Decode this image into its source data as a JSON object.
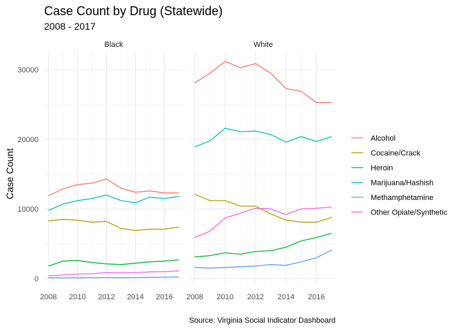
{
  "title": "Case Count by Drug (Statewide)",
  "subtitle": "2008 - 2017",
  "caption": "Source: Virginia Social Indicator Dashboard",
  "chart_data": {
    "type": "line",
    "facets": [
      "Black",
      "White"
    ],
    "x": [
      2008,
      2009,
      2010,
      2011,
      2012,
      2013,
      2014,
      2015,
      2016,
      2017
    ],
    "x_ticks": [
      2008,
      2010,
      2012,
      2014,
      2016
    ],
    "xlim": [
      2007.7,
      2017.3
    ],
    "y_ticks": [
      0,
      10000,
      20000,
      30000
    ],
    "y_tick_labels": [
      "0",
      "10000",
      "20000",
      "30000"
    ],
    "ylim": [
      -800,
      32700
    ],
    "ylabel": "Case Count",
    "xlabel": "",
    "grid": true,
    "legend_position": "right",
    "series": [
      {
        "name": "Alcohol",
        "color": "#F8766D",
        "values": {
          "Black": [
            11900,
            12900,
            13500,
            13700,
            14300,
            13000,
            12400,
            12600,
            12300,
            12300
          ],
          "White": [
            28100,
            29500,
            31200,
            30300,
            30900,
            29500,
            27300,
            26900,
            25300,
            25300
          ]
        }
      },
      {
        "name": "Cocaine/Crack",
        "color": "#B79F00",
        "values": {
          "Black": [
            8300,
            8500,
            8400,
            8100,
            8200,
            7200,
            6900,
            7100,
            7100,
            7400
          ],
          "White": [
            12100,
            11200,
            11200,
            10400,
            10400,
            9300,
            8400,
            8100,
            8100,
            8800
          ]
        }
      },
      {
        "name": "Heroin",
        "color": "#00BA38",
        "values": {
          "Black": [
            1800,
            2500,
            2600,
            2300,
            2100,
            2000,
            2200,
            2400,
            2500,
            2700
          ],
          "White": [
            3100,
            3300,
            3700,
            3500,
            3900,
            4000,
            4500,
            5400,
            5900,
            6500
          ]
        }
      },
      {
        "name": "Marijuana/Hashish",
        "color": "#00BFC4",
        "values": {
          "Black": [
            9800,
            10700,
            11200,
            11500,
            12000,
            11200,
            10900,
            11700,
            11500,
            11800
          ],
          "White": [
            18900,
            19800,
            21600,
            21100,
            21200,
            20700,
            19600,
            20400,
            19700,
            20400
          ]
        }
      },
      {
        "name": "Methamphetamine",
        "color": "#619CFF",
        "values": {
          "Black": [
            120,
            100,
            110,
            130,
            140,
            120,
            140,
            170,
            200,
            230
          ],
          "White": [
            1600,
            1500,
            1600,
            1700,
            1800,
            2000,
            1900,
            2400,
            3000,
            4100
          ]
        }
      },
      {
        "name": "Other Opiate/Synthetic",
        "color": "#F564E3",
        "values": {
          "Black": [
            400,
            500,
            650,
            700,
            850,
            830,
            850,
            950,
            1000,
            1100
          ],
          "White": [
            5900,
            6800,
            8700,
            9400,
            10100,
            10000,
            9200,
            10000,
            10100,
            10300
          ]
        }
      }
    ]
  }
}
